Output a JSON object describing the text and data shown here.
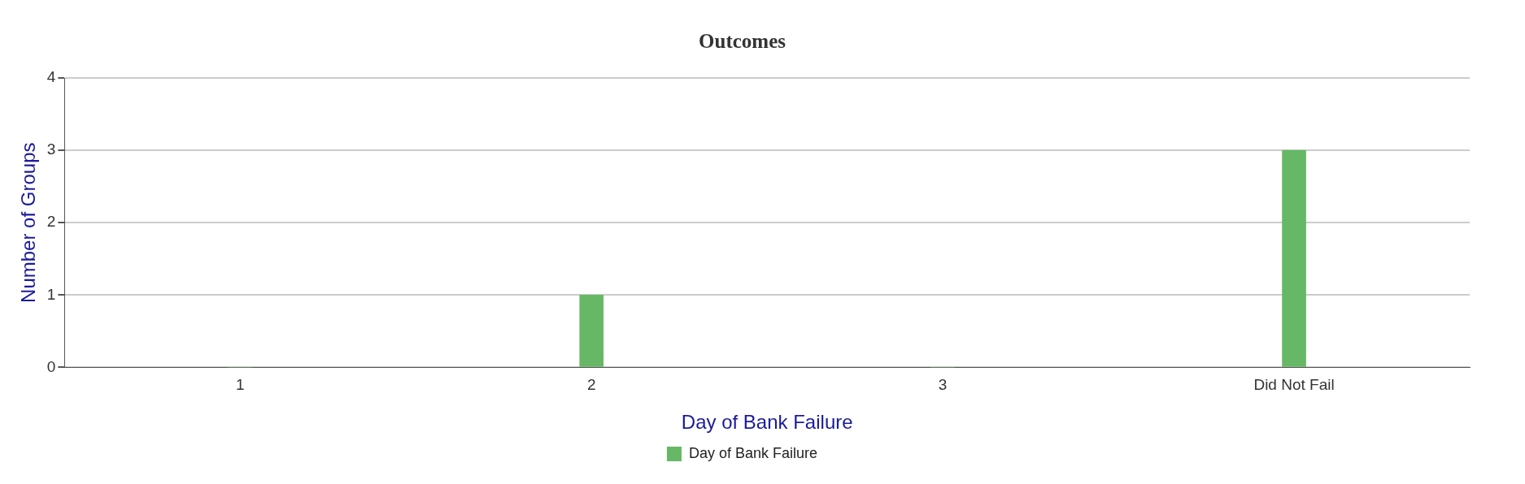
{
  "chart_data": {
    "type": "bar",
    "title": "Outcomes",
    "xlabel": "Day of Bank Failure",
    "ylabel": "Number of Groups",
    "categories": [
      "1",
      "2",
      "3",
      "Did Not Fail"
    ],
    "series": [
      {
        "name": "Day of Bank Failure",
        "color": "#66b866",
        "values": [
          0,
          1,
          0,
          3
        ]
      }
    ],
    "ylim": [
      0,
      4
    ],
    "yticks": [
      0,
      1,
      2,
      3,
      4
    ],
    "grid": "y",
    "legend": "bottom"
  }
}
